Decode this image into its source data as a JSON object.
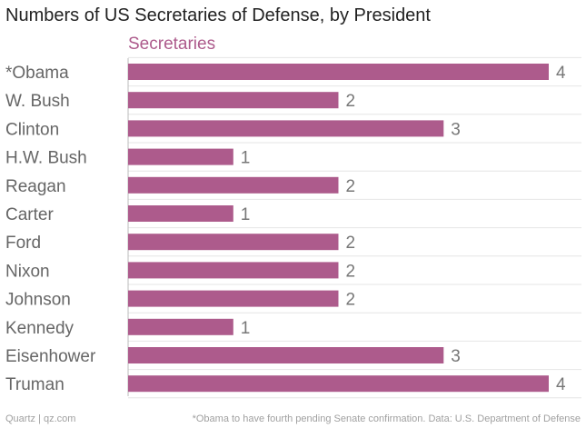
{
  "chart_data": {
    "type": "bar",
    "orientation": "horizontal",
    "title": "Numbers of US Secretaries of Defense, by President",
    "series": [
      {
        "name": "Secretaries",
        "color": "#ad5b8c",
        "values": [
          4,
          2,
          3,
          1,
          2,
          1,
          2,
          2,
          2,
          1,
          3,
          4
        ]
      }
    ],
    "categories": [
      "*Obama",
      "W. Bush",
      "Clinton",
      "H.W. Bush",
      "Reagan",
      "Carter",
      "Ford",
      "Nixon",
      "Johnson",
      "Kennedy",
      "Eisenhower",
      "Truman"
    ],
    "xlim": [
      0,
      4
    ],
    "xlabel": "",
    "ylabel": "",
    "grid": true,
    "data_labels": true
  },
  "colors": {
    "bar": "#ad5b8c",
    "series_label": "#ad5b8c",
    "grid": "#e6e6e6",
    "axis": "#bbbbbb"
  },
  "footer": {
    "source_left": "Quartz | qz.com",
    "note_right": "*Obama to have fourth pending Senate confirmation. Data: U.S. Department of Defense"
  }
}
